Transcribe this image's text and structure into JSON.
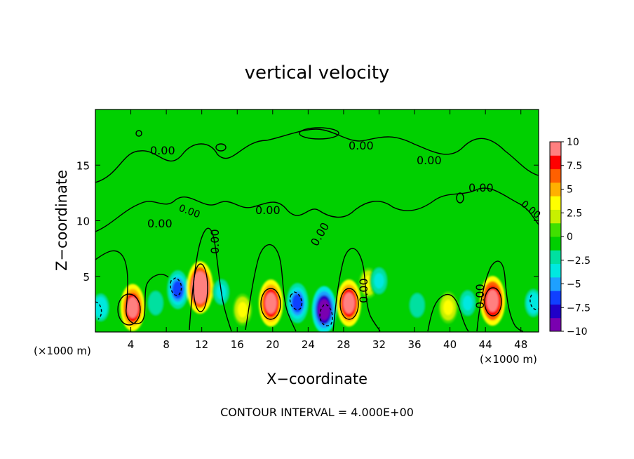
{
  "chart_data": {
    "type": "heatmap",
    "title": "vertical velocity",
    "xlabel": "X−coordinate",
    "ylabel": "Z−coordinate",
    "x_unit_left": "(×1000 m)",
    "x_unit_right": "(×1000 m)",
    "footer": "CONTOUR INTERVAL = 4.000E+00",
    "xlim": [
      0,
      50
    ],
    "ylim": [
      0,
      20
    ],
    "x_ticks": [
      4,
      8,
      12,
      16,
      20,
      24,
      28,
      32,
      36,
      40,
      44,
      48
    ],
    "x_tick_labels": [
      "4",
      "8",
      "12",
      "16",
      "20",
      "24",
      "28",
      "32",
      "36",
      "40",
      "44",
      "48"
    ],
    "y_ticks": [
      5,
      10,
      15
    ],
    "y_tick_labels": [
      "5",
      "10",
      "15"
    ],
    "colorbar": {
      "range": [
        -10,
        10
      ],
      "tick_values": [
        10,
        7.5,
        5,
        2.5,
        0,
        -2.5,
        -5,
        -7.5,
        -10
      ],
      "tick_labels": [
        "10",
        "7.5",
        "5",
        "2.5",
        "0",
        "−2.5",
        "−5",
        "−7.5",
        "−10"
      ],
      "colors": [
        "#7a00b0",
        "#2000c8",
        "#1040ff",
        "#1ea0ff",
        "#00e8e0",
        "#00e0a0",
        "#00d000",
        "#40e000",
        "#c8f000",
        "#ffff00",
        "#ffb000",
        "#ff6000",
        "#ff0000",
        "#ff8080"
      ]
    },
    "contour_interval": 4.0,
    "contour_labels": [
      "0.00",
      "0.00",
      "0.00",
      "0.00",
      "0.00",
      "0.00",
      "0.00",
      "0.00",
      "0.00",
      "0.00",
      "0.00",
      "0.00"
    ],
    "features": [
      {
        "x": 4.2,
        "z": 2.2,
        "w": 9
      },
      {
        "x": 6.8,
        "z": 2.6,
        "w": -2.5
      },
      {
        "x": 9.3,
        "z": 3.8,
        "w": -6
      },
      {
        "x": 11.8,
        "z": 4.0,
        "w": 11
      },
      {
        "x": 14.2,
        "z": 3.6,
        "w": -3
      },
      {
        "x": 16.6,
        "z": 2.0,
        "w": 3.5
      },
      {
        "x": 19.8,
        "z": 2.6,
        "w": 9
      },
      {
        "x": 22.8,
        "z": 2.6,
        "w": -6.5
      },
      {
        "x": 25.8,
        "z": 2.0,
        "w": -9
      },
      {
        "x": 28.6,
        "z": 2.6,
        "w": 9
      },
      {
        "x": 30.8,
        "z": 4.4,
        "w": 3
      },
      {
        "x": 32.0,
        "z": 4.6,
        "w": -3.5
      },
      {
        "x": 36.3,
        "z": 2.4,
        "w": -2.5
      },
      {
        "x": 39.8,
        "z": 2.2,
        "w": 3.5
      },
      {
        "x": 42.0,
        "z": 2.6,
        "w": -3
      },
      {
        "x": 44.8,
        "z": 2.8,
        "w": 10
      },
      {
        "x": 49.4,
        "z": 2.6,
        "w": -4
      },
      {
        "x": 0.6,
        "z": 2.2,
        "w": -4
      }
    ]
  }
}
